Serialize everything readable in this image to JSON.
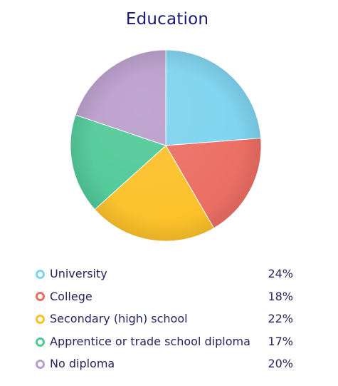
{
  "chart_data": {
    "type": "pie",
    "title": "Education",
    "categories": [
      "University",
      "College",
      "Secondary (high) school",
      "Apprentice or trade school diploma",
      "No diploma"
    ],
    "values": [
      24,
      18,
      22,
      17,
      20
    ],
    "value_labels": [
      "24%",
      "18%",
      "22%",
      "17%",
      "20%"
    ],
    "colors": [
      "#7ed3ef",
      "#ec6e63",
      "#fcc12a",
      "#50c997",
      "#b99dcb"
    ],
    "start_angle_deg": 0,
    "direction": "clockwise",
    "legend_position": "bottom"
  }
}
